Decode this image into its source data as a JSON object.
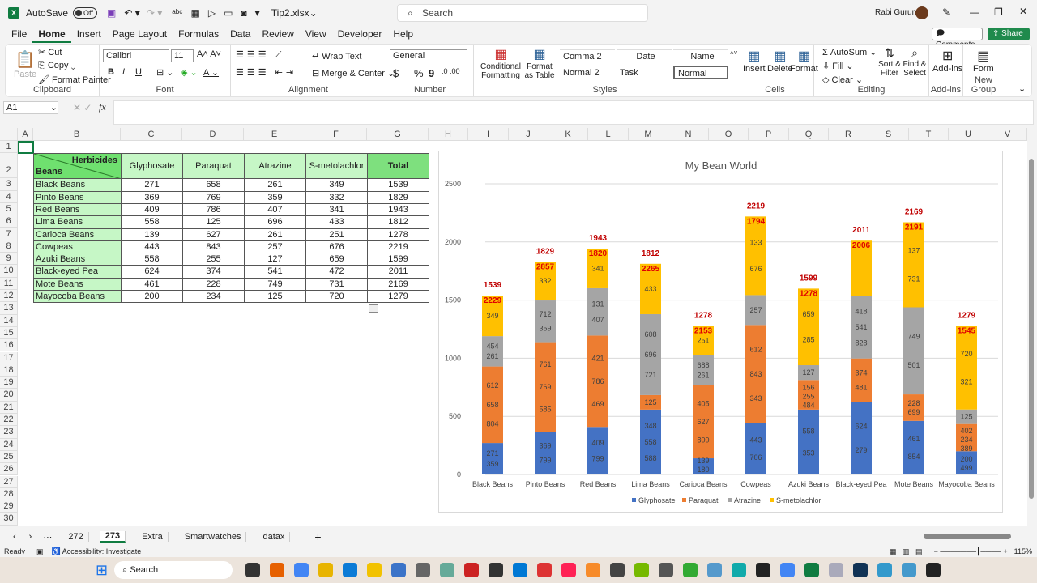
{
  "titlebar": {
    "autosave_label": "AutoSave",
    "autosave_state": "Off",
    "filename": "Tip2.xlsx",
    "search_placeholder": "Search",
    "user": "Rabi Gurung"
  },
  "menu": [
    "File",
    "Home",
    "Insert",
    "Page Layout",
    "Formulas",
    "Data",
    "Review",
    "View",
    "Developer",
    "Help"
  ],
  "menu_active": "Home",
  "actions": {
    "comments": "Comments",
    "share": "Share"
  },
  "ribbon": {
    "clipboard": {
      "paste": "Paste",
      "cut": "Cut",
      "copy": "Copy",
      "format_painter": "Format Painter",
      "label": "Clipboard"
    },
    "font": {
      "name": "Calibri",
      "size": "11",
      "label": "Font",
      "bold": "B",
      "italic": "I",
      "underline": "U"
    },
    "alignment": {
      "wrap": "Wrap Text",
      "merge": "Merge & Center",
      "label": "Alignment"
    },
    "number": {
      "format": "General",
      "label": "Number",
      "currency": "$",
      "percent": "%",
      "comma": "9"
    },
    "styles": {
      "conditional": "Conditional Formatting",
      "format_table": "Format as Table",
      "cells": [
        "Comma 2",
        "Date",
        "Name",
        "Normal 2",
        "Task",
        "Normal"
      ],
      "label": "Styles"
    },
    "cells": {
      "insert": "Insert",
      "delete": "Delete",
      "format": "Format",
      "label": "Cells"
    },
    "editing": {
      "autosum": "AutoSum",
      "fill": "Fill",
      "clear": "Clear",
      "sort": "Sort & Filter",
      "find": "Find & Select",
      "label": "Editing"
    },
    "addins": {
      "addins": "Add-ins",
      "label": "Add-ins"
    },
    "newgroup": {
      "form": "Form",
      "label": "New Group"
    }
  },
  "formula_bar": {
    "name_box": "A1",
    "fx": "fx",
    "value": ""
  },
  "columns": [
    "A",
    "B",
    "C",
    "D",
    "E",
    "F",
    "G",
    "H",
    "I",
    "J",
    "K",
    "L",
    "M",
    "N",
    "O",
    "P",
    "Q",
    "R",
    "S",
    "T",
    "U",
    "V"
  ],
  "table": {
    "corner_top": "Herbicides",
    "corner_bottom": "Beans",
    "headers": [
      "Glyphosate",
      "Paraquat",
      "Atrazine",
      "S-metolachlor",
      "Total"
    ],
    "rows": [
      [
        "Black Beans",
        271,
        658,
        261,
        349,
        1539
      ],
      [
        "Pinto Beans",
        369,
        769,
        359,
        332,
        1829
      ],
      [
        "Red Beans",
        409,
        786,
        407,
        341,
        1943
      ],
      [
        "Lima Beans",
        558,
        125,
        696,
        433,
        1812
      ],
      [
        "Carioca Beans",
        139,
        627,
        261,
        251,
        1278
      ],
      [
        "Cowpeas",
        443,
        843,
        257,
        676,
        2219
      ],
      [
        "Azuki Beans",
        558,
        255,
        127,
        659,
        1599
      ],
      [
        "Black-eyed Pea",
        624,
        374,
        541,
        472,
        2011
      ],
      [
        "Mote Beans",
        461,
        228,
        749,
        731,
        2169
      ],
      [
        "Mayocoba Beans",
        200,
        234,
        125,
        720,
        1279
      ]
    ]
  },
  "chart_data": {
    "type": "bar",
    "stacked": true,
    "title": "My Bean World",
    "categories": [
      "Black Beans",
      "Pinto Beans",
      "Red Beans",
      "Lima Beans",
      "Carioca Beans",
      "Cowpeas",
      "Azuki Beans",
      "Black-eyed Pea",
      "Mote Beans",
      "Mayocoba Beans"
    ],
    "series": [
      {
        "name": "Glyphosate",
        "color": "#4472c4",
        "values": [
          271,
          369,
          409,
          558,
          139,
          443,
          558,
          624,
          461,
          200
        ]
      },
      {
        "name": "Paraquat",
        "color": "#ed7d31",
        "values": [
          658,
          769,
          786,
          125,
          627,
          843,
          255,
          374,
          228,
          234
        ]
      },
      {
        "name": "Atrazine",
        "color": "#a5a5a5",
        "values": [
          261,
          359,
          407,
          696,
          261,
          257,
          127,
          541,
          749,
          125
        ]
      },
      {
        "name": "S-metolachlor",
        "color": "#ffc000",
        "values": [
          349,
          332,
          341,
          433,
          251,
          676,
          659,
          472,
          731,
          720
        ]
      }
    ],
    "totals": [
      1539,
      1829,
      1943,
      1812,
      1278,
      2219,
      1599,
      2011,
      2169,
      1279
    ],
    "segment_labels": [
      [
        [
          "271",
          "359"
        ],
        [
          "612",
          "658",
          "804"
        ],
        [
          "454",
          "261"
        ],
        [
          "349"
        ]
      ],
      [
        [
          "369",
          "799"
        ],
        [
          "761",
          "769",
          "585"
        ],
        [
          "712",
          "359"
        ],
        [
          "332"
        ]
      ],
      [
        [
          "409",
          "799"
        ],
        [
          "421",
          "786",
          "469"
        ],
        [
          "131",
          "407"
        ],
        [
          "341"
        ]
      ],
      [
        [
          "348",
          "558",
          "588"
        ],
        [
          "125"
        ],
        [
          "608",
          "696",
          "721"
        ],
        [
          "433"
        ]
      ],
      [
        [
          "139",
          "180"
        ],
        [
          "405",
          "627",
          "800"
        ],
        [
          "688",
          "261"
        ],
        [
          "251"
        ]
      ],
      [
        [
          "443",
          "706"
        ],
        [
          "612",
          "843",
          "343"
        ],
        [
          "257"
        ],
        [
          "133",
          "676"
        ]
      ],
      [
        [
          "558",
          "353"
        ],
        [
          "156",
          "255",
          "484"
        ],
        [
          "127"
        ],
        [
          "659",
          "285"
        ]
      ],
      [
        [
          "624",
          "279"
        ],
        [
          "374",
          "481"
        ],
        [
          "418",
          "541",
          "828"
        ],
        []
      ],
      [
        [
          "461",
          "854"
        ],
        [
          "228",
          "699"
        ],
        [
          "749",
          "501"
        ],
        [
          "137",
          "731"
        ]
      ],
      [
        [
          "200",
          "499"
        ],
        [
          "402",
          "234",
          "389"
        ],
        [
          "125"
        ],
        [
          "720",
          "321"
        ]
      ]
    ],
    "overlay_labels": [
      "2229",
      "2857",
      "1820",
      "2265",
      "2153",
      "1794",
      "1278",
      "2006",
      "2191",
      "1545"
    ],
    "total_label_color": "#c00000",
    "ylim": [
      0,
      2500
    ],
    "yticks": [
      0,
      500,
      1000,
      1500,
      2000,
      2500
    ],
    "grid": true,
    "legend": "bottom"
  },
  "sheet_tabs": [
    "272",
    "273",
    "Extra",
    "Smartwatches",
    "datax"
  ],
  "active_tab": "273",
  "status": {
    "ready": "Ready",
    "accessibility": "Accessibility: Investigate",
    "zoom": "115%"
  },
  "taskbar": {
    "search": "Search"
  }
}
